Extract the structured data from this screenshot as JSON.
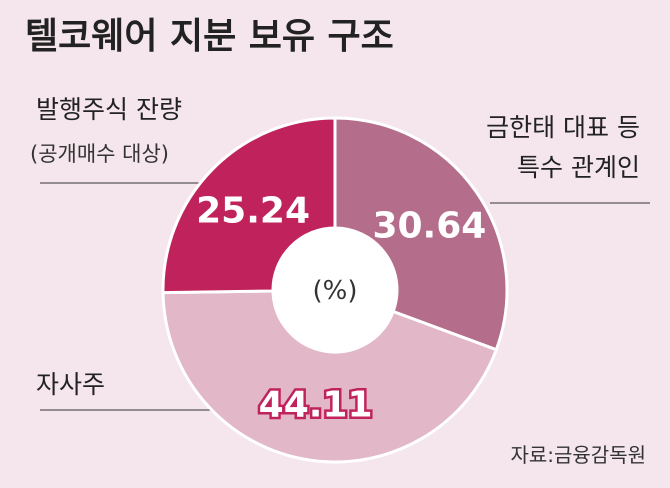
{
  "chart_data": {
    "type": "donut",
    "title": "텔코웨어 지분 보유 구조",
    "categories": [
      "금한태 대표 등\n특수 관계인",
      "자사주",
      "발행주식 잔량"
    ],
    "category_notes": [
      null,
      null,
      "(공개매수 대상)"
    ],
    "values": [
      30.64,
      44.11,
      25.24
    ],
    "colors": [
      "#b46d8b",
      "#e2b7c8",
      "#c0235b"
    ],
    "center_label": "(%)",
    "source": "자료:금융감독원"
  }
}
